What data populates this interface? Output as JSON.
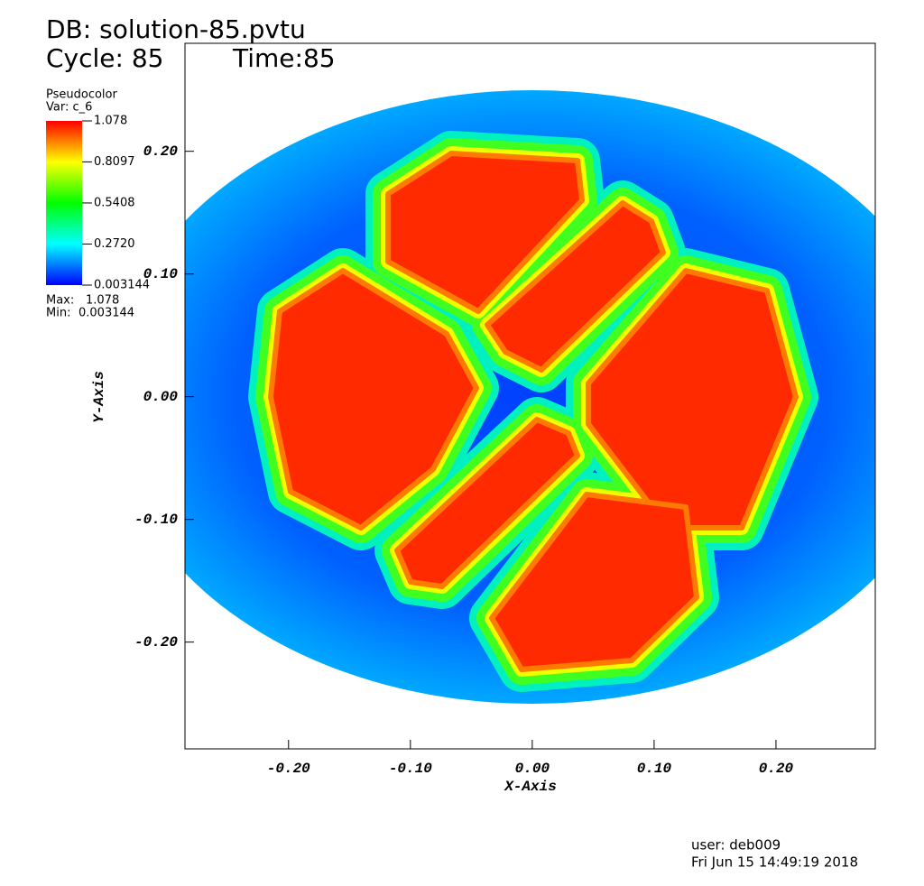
{
  "chart_data": {
    "type": "pseudocolor",
    "db_title": "DB: solution-85.pvtu",
    "cycle": "Cycle: 85",
    "time": "Time:85",
    "x_label": "X-Axis",
    "y_label": "Y-Axis",
    "xlim": [
      -0.285,
      0.2815
    ],
    "ylim": [
      -0.287,
      0.288
    ],
    "xticks": [
      {
        "value": -0.2,
        "label": "-0.20"
      },
      {
        "value": -0.1,
        "label": "-0.10"
      },
      {
        "value": 0,
        "label": "0.00"
      },
      {
        "value": 0.1,
        "label": "0.10"
      },
      {
        "value": 0.2,
        "label": "0.20"
      }
    ],
    "yticks": [
      {
        "value": -0.2,
        "label": "-0.20"
      },
      {
        "value": -0.1,
        "label": "-0.10"
      },
      {
        "value": 0,
        "label": "0.00"
      },
      {
        "value": 0.1,
        "label": "0.10"
      },
      {
        "value": 0.2,
        "label": "0.20"
      }
    ],
    "legend": {
      "title": "Pseudocolor",
      "variable": "Var: c_6",
      "range": [
        0.003144,
        1.078
      ],
      "ticks": [
        1.078,
        0.8097,
        0.5408,
        {
          "value": 0.272,
          "label": "0.2720"
        },
        0.003144
      ],
      "colors": [
        "#ff0000",
        "#ffff00",
        "#00ff00",
        "#00ffff",
        "#0000ff"
      ],
      "max_label": "Max:",
      "max": 1.078,
      "min_label": "Min:",
      "min": 0.003144
    },
    "user": "user: deb009",
    "date": "Fri Jun 15 14:49:19 2018"
  }
}
